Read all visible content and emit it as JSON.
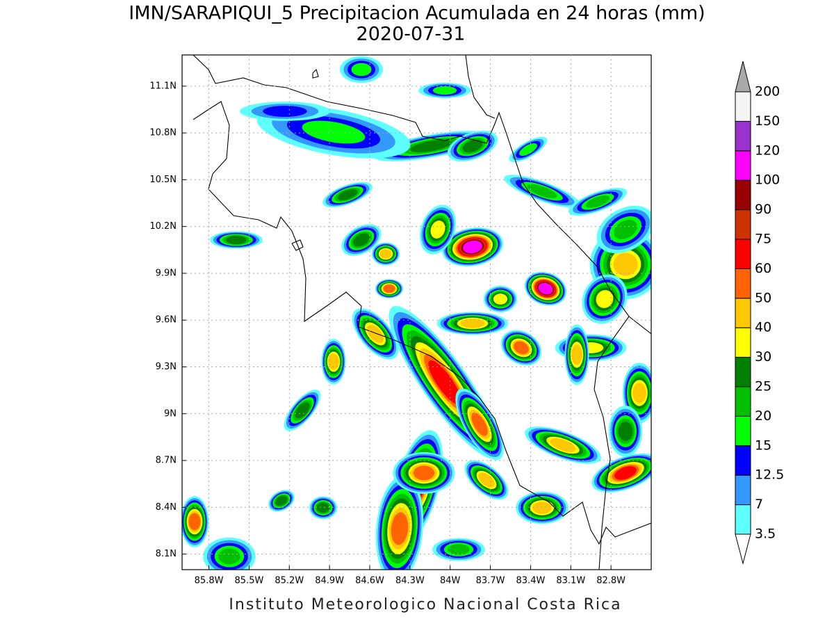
{
  "chart_data": {
    "type": "map",
    "title": "IMN/SARAPIQUI_5 Precipitacion Acumulada en 24 horas (mm)",
    "subtitle": "2020-07-31",
    "footer": "Instituto Meteorologico Nacional Costa Rica",
    "xlim": [
      -86.0,
      -82.5
    ],
    "ylim": [
      8.0,
      11.3
    ],
    "xticks": [
      {
        "value": -85.8,
        "label": "85.8W"
      },
      {
        "value": -85.5,
        "label": "85.5W"
      },
      {
        "value": -85.2,
        "label": "85.2W"
      },
      {
        "value": -84.9,
        "label": "84.9W"
      },
      {
        "value": -84.6,
        "label": "84.6W"
      },
      {
        "value": -84.3,
        "label": "84.3W"
      },
      {
        "value": -84.0,
        "label": "84W"
      },
      {
        "value": -83.7,
        "label": "83.7W"
      },
      {
        "value": -83.4,
        "label": "83.4W"
      },
      {
        "value": -83.1,
        "label": "83.1W"
      },
      {
        "value": -82.8,
        "label": "82.8W"
      }
    ],
    "yticks": [
      {
        "value": 8.1,
        "label": "8.1N"
      },
      {
        "value": 8.4,
        "label": "8.4N"
      },
      {
        "value": 8.7,
        "label": "8.7N"
      },
      {
        "value": 9.0,
        "label": "9N"
      },
      {
        "value": 9.3,
        "label": "9.3N"
      },
      {
        "value": 9.6,
        "label": "9.6N"
      },
      {
        "value": 9.9,
        "label": "9.9N"
      },
      {
        "value": 10.2,
        "label": "10.2N"
      },
      {
        "value": 10.5,
        "label": "10.5N"
      },
      {
        "value": 10.8,
        "label": "10.8N"
      },
      {
        "value": 11.1,
        "label": "11.1N"
      }
    ],
    "grid": true,
    "colorbar": {
      "levels": [
        3.5,
        7,
        12.5,
        15,
        20,
        25,
        30,
        40,
        50,
        60,
        75,
        90,
        100,
        120,
        150,
        200
      ],
      "colors": [
        "#5effff",
        "#3399ff",
        "#0000ff",
        "#00ff00",
        "#00c000",
        "#008000",
        "#ffff00",
        "#ffc800",
        "#ff6400",
        "#ff0000",
        "#cc3300",
        "#990000",
        "#ff00ff",
        "#9933cc",
        "#f5f5f5"
      ],
      "over_color": "#aaaaaa",
      "under_color": "#ffffff"
    }
  }
}
